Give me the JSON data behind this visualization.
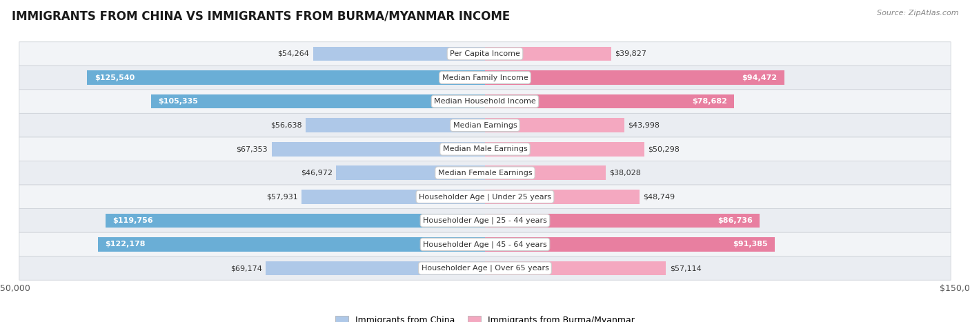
{
  "title": "IMMIGRANTS FROM CHINA VS IMMIGRANTS FROM BURMA/MYANMAR INCOME",
  "source": "Source: ZipAtlas.com",
  "categories": [
    "Per Capita Income",
    "Median Family Income",
    "Median Household Income",
    "Median Earnings",
    "Median Male Earnings",
    "Median Female Earnings",
    "Householder Age | Under 25 years",
    "Householder Age | 25 - 44 years",
    "Householder Age | 45 - 64 years",
    "Householder Age | Over 65 years"
  ],
  "china_values": [
    54264,
    125540,
    105335,
    56638,
    67353,
    46972,
    57931,
    119756,
    122178,
    69174
  ],
  "burma_values": [
    39827,
    94472,
    78682,
    43998,
    50298,
    38028,
    48749,
    86736,
    91385,
    57114
  ],
  "china_labels": [
    "$54,264",
    "$125,540",
    "$105,335",
    "$56,638",
    "$67,353",
    "$46,972",
    "$57,931",
    "$119,756",
    "$122,178",
    "$69,174"
  ],
  "burma_labels": [
    "$39,827",
    "$94,472",
    "$78,682",
    "$43,998",
    "$50,298",
    "$38,028",
    "$48,749",
    "$86,736",
    "$91,385",
    "$57,114"
  ],
  "china_color_large": "#6aaed6",
  "china_color_small": "#aec8e8",
  "burma_color_large": "#e87fa0",
  "burma_color_small": "#f4a8c0",
  "max_value": 150000,
  "label_threshold": 75000,
  "legend_china": "Immigrants from China",
  "legend_burma": "Immigrants from Burma/Myanmar",
  "row_color_odd": "#f0f2f5",
  "row_color_even": "#e8ebf0"
}
